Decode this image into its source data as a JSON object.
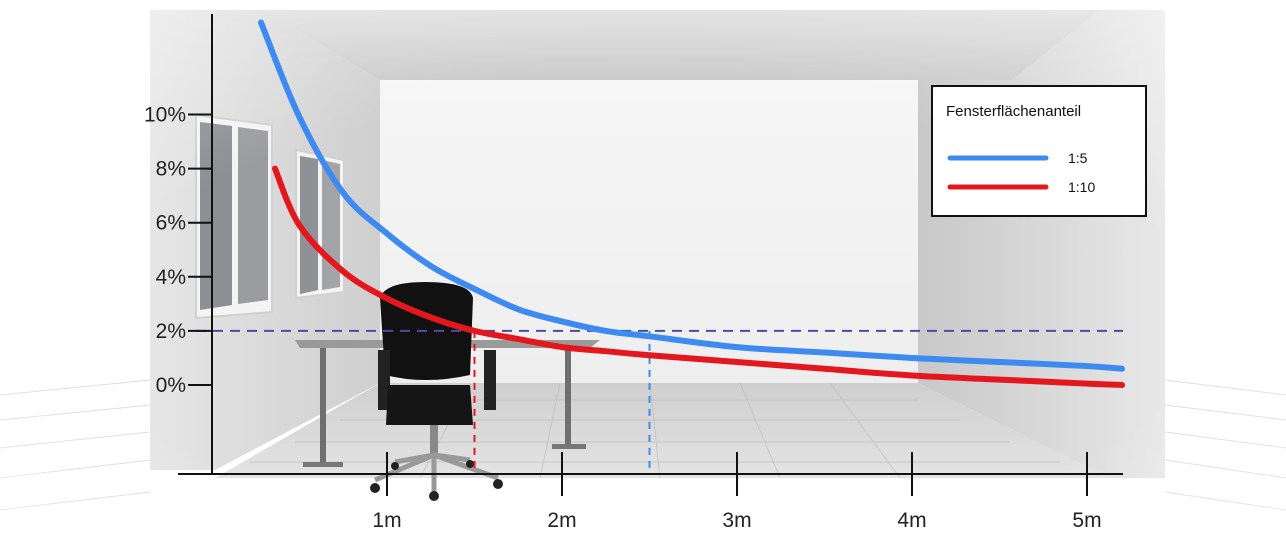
{
  "chart_data": {
    "type": "line",
    "title": "",
    "xlabel": "",
    "ylabel": "",
    "x_ticks": [
      "1m",
      "2m",
      "3m",
      "4m",
      "5m"
    ],
    "y_ticks": [
      "0%",
      "2%",
      "4%",
      "6%",
      "8%",
      "10%"
    ],
    "xlim": [
      0,
      5.2
    ],
    "ylim": [
      -3.3,
      14
    ],
    "legend": {
      "title": "Fensterflächenanteil",
      "position": "top-right"
    },
    "series": [
      {
        "name": "1:5",
        "color": "#3d8af0",
        "x": [
          0.28,
          0.5,
          0.75,
          1.0,
          1.25,
          1.5,
          1.75,
          2.0,
          2.25,
          2.5,
          3.0,
          3.5,
          4.0,
          4.5,
          5.0,
          5.2
        ],
        "y": [
          13.4,
          9.9,
          7.1,
          5.6,
          4.4,
          3.55,
          2.8,
          2.35,
          2.0,
          1.8,
          1.4,
          1.2,
          1.0,
          0.85,
          0.7,
          0.6
        ]
      },
      {
        "name": "1:10",
        "color": "#e3171d",
        "x": [
          0.36,
          0.5,
          0.75,
          1.0,
          1.25,
          1.5,
          1.75,
          2.0,
          2.25,
          2.5,
          3.0,
          3.5,
          4.0,
          4.5,
          5.0,
          5.2
        ],
        "y": [
          8.0,
          5.9,
          4.2,
          3.2,
          2.5,
          2.0,
          1.7,
          1.4,
          1.25,
          1.1,
          0.85,
          0.6,
          0.35,
          0.2,
          0.05,
          0.0
        ]
      }
    ],
    "reference_line": {
      "y": 2,
      "color": "#4a4f9a"
    },
    "threshold_markers": [
      {
        "x": 1.5,
        "color": "#e3171d"
      },
      {
        "x": 2.5,
        "color": "#3d8af0"
      }
    ],
    "grid": false
  }
}
